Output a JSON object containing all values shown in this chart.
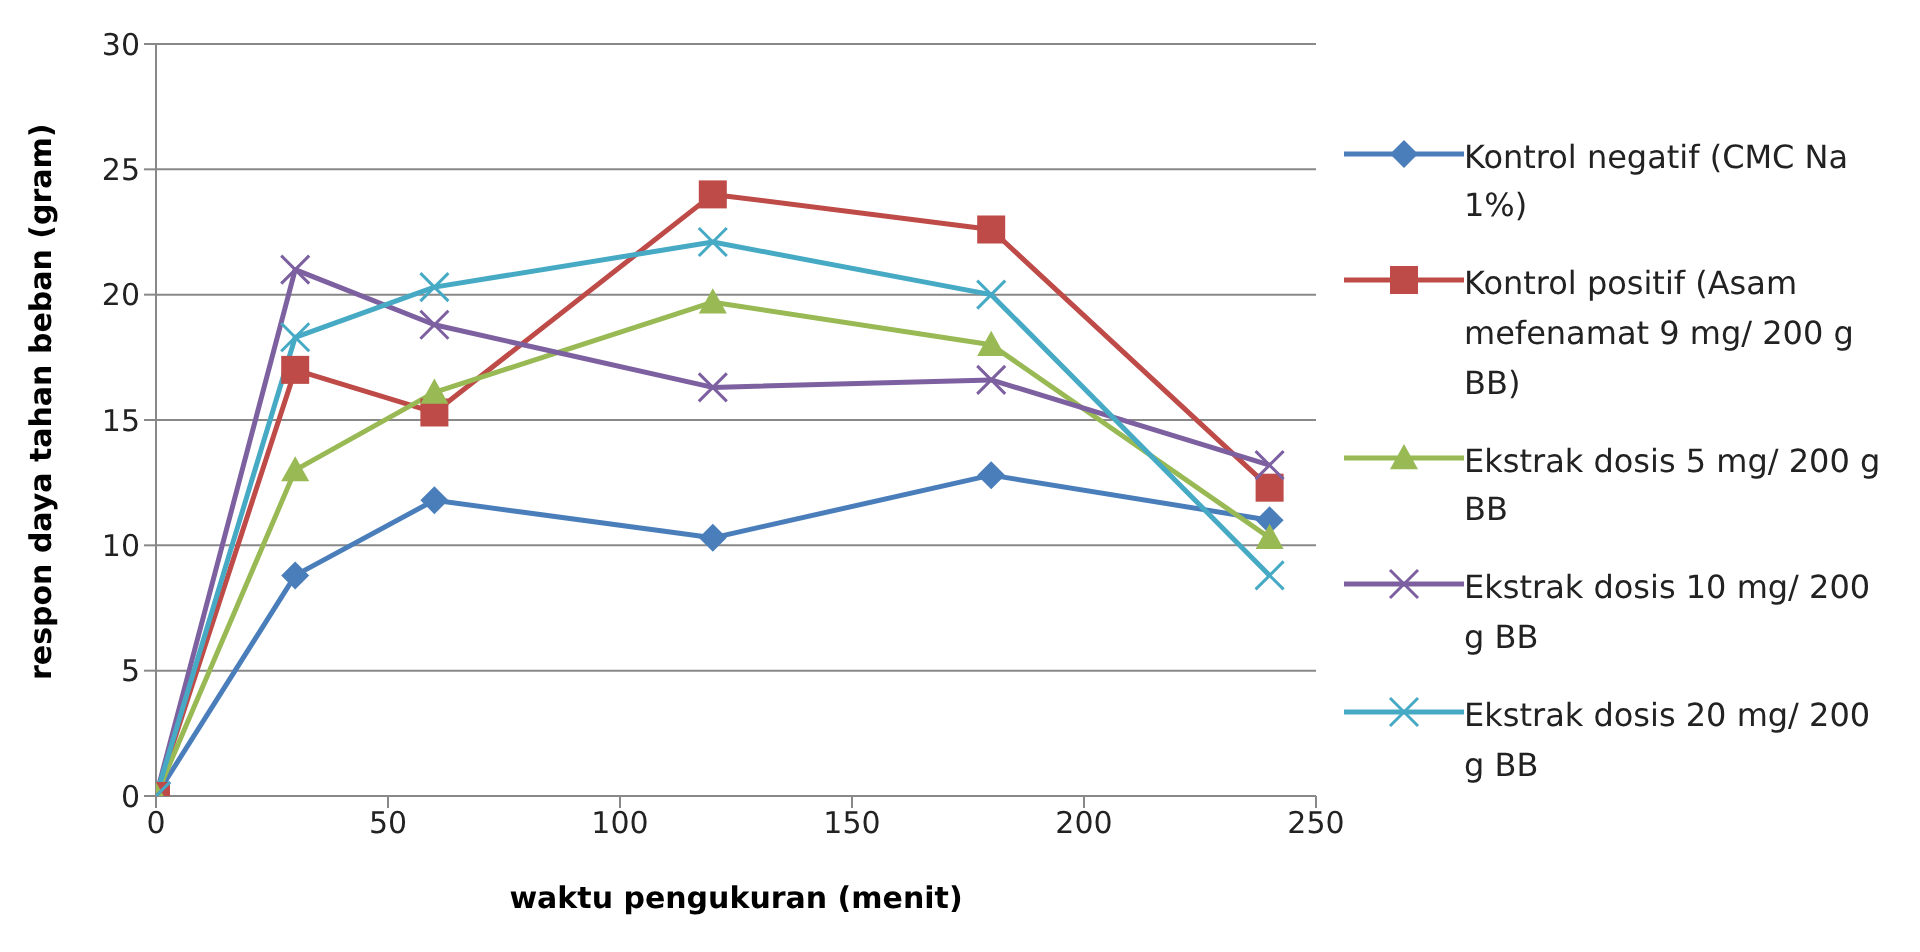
{
  "chart_data": {
    "type": "line",
    "xlabel": "waktu pengukuran  (menit)",
    "ylabel": "respon daya tahan beban  (gram)",
    "x": [
      0,
      30,
      60,
      120,
      180,
      240
    ],
    "xlim": [
      0,
      250
    ],
    "xticks": [
      0,
      50,
      100,
      150,
      200,
      250
    ],
    "ylim": [
      0,
      30
    ],
    "yticks": [
      0,
      5,
      10,
      15,
      20,
      25,
      30
    ],
    "grid": "y",
    "legend": "right",
    "series": [
      {
        "name": "Kontrol  negatif (CMC Na 1%)",
        "color": "#4a7ebb",
        "marker": "diamond",
        "values": [
          0,
          8.8,
          11.8,
          10.3,
          12.8,
          11.0
        ]
      },
      {
        "name": "Kontrol  positif (Asam mefenamat 9 mg/ 200 g BB)",
        "color": "#be4b48",
        "marker": "square",
        "values": [
          0,
          17.0,
          15.3,
          24.0,
          22.6,
          12.3
        ]
      },
      {
        "name": "Ekstrak dosis  5 mg/ 200 g BB",
        "color": "#98b954",
        "marker": "triangle",
        "values": [
          0,
          13.0,
          16.1,
          19.7,
          18.0,
          10.3
        ]
      },
      {
        "name": "Ekstrak dosis  10 mg/ 200 g BB",
        "color": "#7d60a0",
        "marker": "cross",
        "values": [
          0,
          21.0,
          18.8,
          16.3,
          16.6,
          13.2
        ]
      },
      {
        "name": "Ekstrak dosis  20 mg/ 200 g BB",
        "color": "#46aac5",
        "marker": "cross",
        "values": [
          0,
          18.3,
          20.3,
          22.1,
          20.0,
          8.8
        ]
      }
    ]
  }
}
